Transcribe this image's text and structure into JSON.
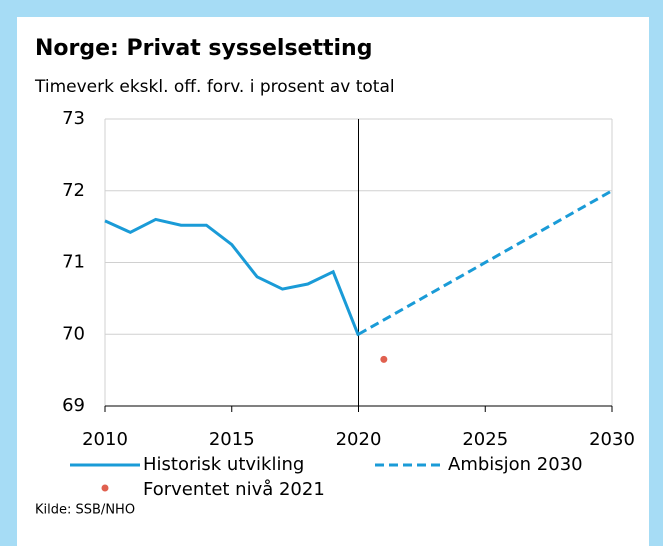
{
  "chart_data": {
    "type": "line",
    "title": "Norge:  Privat sysselsetting",
    "subtitle": "Timeverk ekskl. off. forv. i prosent av total",
    "source": "Kilde: SSB/NHO",
    "xlim": [
      2010,
      2030
    ],
    "xticks": [
      2010,
      2015,
      2020,
      2025,
      2030
    ],
    "ylim": [
      69,
      73
    ],
    "yticks": [
      69,
      70,
      71,
      72,
      73
    ],
    "grid": true,
    "vline_x": 2020,
    "series": [
      {
        "name": "Historisk utvikling",
        "color": "#1a9bd7",
        "style": "solid",
        "x": [
          2010,
          2011,
          2012,
          2013,
          2014,
          2015,
          2016,
          2017,
          2018,
          2019,
          2020
        ],
        "values": [
          71.58,
          71.42,
          71.6,
          71.52,
          71.52,
          71.25,
          70.8,
          70.63,
          70.7,
          70.87,
          69.98
        ]
      },
      {
        "name": "Ambisjon 2030",
        "color": "#1a9bd7",
        "style": "dashed",
        "x": [
          2020,
          2030
        ],
        "values": [
          70.0,
          72.0
        ]
      },
      {
        "name": "Forventet nivå 2021",
        "color": "#e0604f",
        "style": "point",
        "x": [
          2021
        ],
        "values": [
          69.65
        ]
      }
    ]
  }
}
